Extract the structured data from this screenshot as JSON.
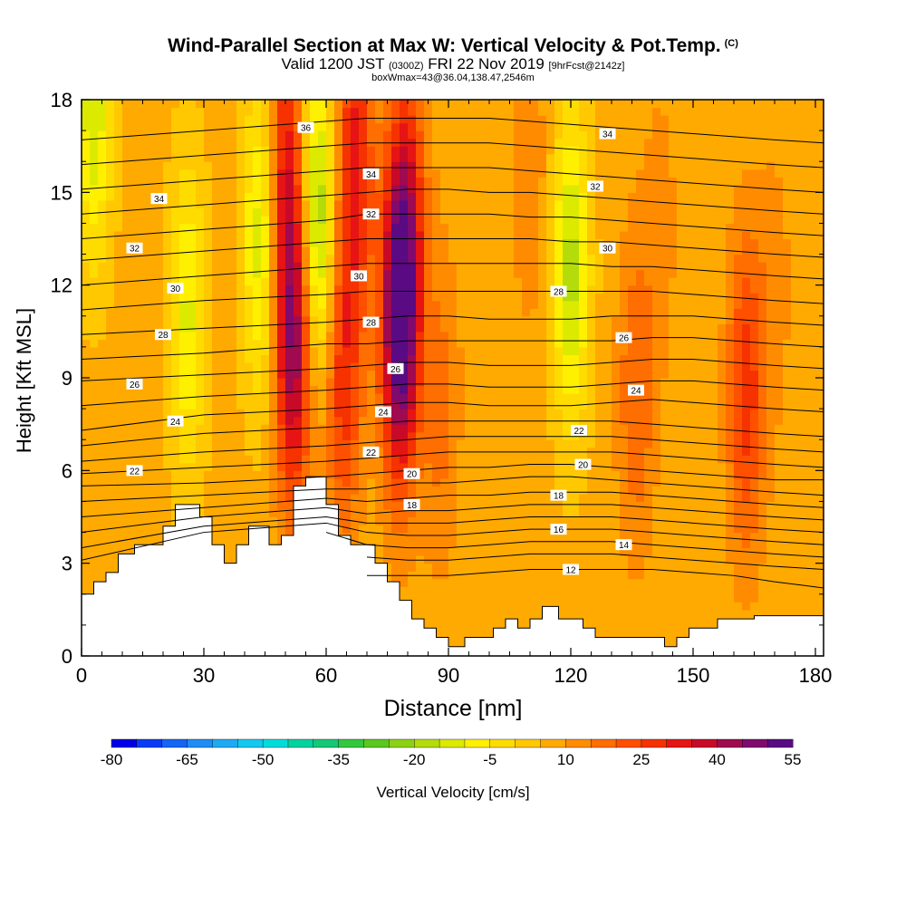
{
  "title": {
    "main": "Wind-Parallel Section at Max W: Vertical Velocity & Pot.Temp.",
    "copyright": "(C)",
    "valid_prefix": "Valid 1200 JST",
    "valid_zulu": "(0300Z)",
    "valid_date": "FRI 22 Nov 2019",
    "forecast": "[9hrFcst@2142z]",
    "box": "boxWmax=43@36.04,138.47,2546m"
  },
  "chart_data": {
    "type": "heatmap",
    "xlabel": "Distance [nm]",
    "ylabel": "Height [Kft MSL]",
    "xlim": [
      0,
      182
    ],
    "ylim": [
      0,
      18
    ],
    "x_ticks": [
      0,
      30,
      60,
      90,
      120,
      150,
      180
    ],
    "y_ticks": [
      0,
      3,
      6,
      9,
      12,
      15,
      18
    ],
    "colorbar": {
      "label": "Vertical Velocity [cm/s]",
      "ticks": [
        -80,
        -65,
        -50,
        -35,
        -20,
        -5,
        10,
        25,
        40,
        55
      ],
      "levels": [
        -80,
        -75,
        -70,
        -65,
        -60,
        -55,
        -50,
        -45,
        -40,
        -35,
        -30,
        -25,
        -20,
        -15,
        -10,
        -5,
        0,
        5,
        10,
        15,
        20,
        25,
        30,
        35,
        40,
        45,
        50,
        55
      ],
      "colors": [
        "#0000e6",
        "#0a3cf5",
        "#1464f5",
        "#1e8cf5",
        "#1eaaf5",
        "#14c8f0",
        "#00dcdc",
        "#00d2a0",
        "#14c878",
        "#32c83c",
        "#5ac81e",
        "#8cd214",
        "#b4dc0a",
        "#dcea00",
        "#fff000",
        "#ffdc00",
        "#ffc800",
        "#ffaa00",
        "#ff8c00",
        "#ff6e00",
        "#ff5000",
        "#f53200",
        "#e61414",
        "#c80a28",
        "#a00a50",
        "#800a6e",
        "#5a0a82"
      ]
    },
    "w_features": [
      {
        "x": 3,
        "z": 17.7,
        "w": -14
      },
      {
        "x": 26,
        "z": 11,
        "w": -11
      },
      {
        "x": 44,
        "z": 13.5,
        "w": -14
      },
      {
        "x": 58,
        "z": 14.0,
        "w": -22
      },
      {
        "x": 52,
        "z": 10.0,
        "w": 44
      },
      {
        "x": 50,
        "z": 16.0,
        "w": 30
      },
      {
        "x": 67,
        "z": 16.0,
        "w": 32
      },
      {
        "x": 64,
        "z": 9.0,
        "w": 28
      },
      {
        "x": 78,
        "z": 10.8,
        "w": 55
      },
      {
        "x": 80,
        "z": 14.5,
        "w": 26
      },
      {
        "x": 88,
        "z": 8.0,
        "w": 17
      },
      {
        "x": 98,
        "z": 14.0,
        "w": 10
      },
      {
        "x": 110,
        "z": 15.5,
        "w": 14
      },
      {
        "x": 120,
        "z": 12.5,
        "w": -17
      },
      {
        "x": 136,
        "z": 8.5,
        "w": 20
      },
      {
        "x": 142,
        "z": 14.0,
        "w": 12
      },
      {
        "x": 163,
        "z": 8.5,
        "w": 28
      },
      {
        "x": 170,
        "z": 12.0,
        "w": 12
      }
    ],
    "terrain": {
      "x": [
        0,
        3,
        3,
        6,
        6,
        9,
        9,
        13,
        13,
        20,
        20,
        23,
        23,
        29,
        29,
        32,
        32,
        35,
        35,
        38,
        38,
        41,
        41,
        43,
        43,
        46,
        46,
        49,
        49,
        52,
        52,
        55,
        55,
        60,
        60,
        63,
        63,
        66,
        66,
        72,
        72,
        75,
        75,
        78,
        78,
        81,
        81,
        84,
        84,
        87,
        87,
        90,
        90,
        94,
        94,
        101,
        101,
        104,
        104,
        107,
        107,
        110,
        110,
        113,
        113,
        117,
        117,
        123,
        123,
        126,
        126,
        143,
        143,
        146,
        146,
        149,
        149,
        156,
        156,
        165,
        165,
        182
      ],
      "z": [
        2.0,
        2.0,
        2.4,
        2.4,
        2.7,
        2.7,
        3.3,
        3.3,
        3.6,
        3.6,
        4.2,
        4.2,
        4.9,
        4.9,
        4.5,
        4.5,
        3.6,
        3.6,
        3.0,
        3.0,
        3.6,
        3.6,
        4.2,
        4.2,
        4.2,
        4.2,
        3.6,
        3.6,
        3.9,
        3.9,
        5.5,
        5.5,
        5.8,
        5.8,
        4.9,
        4.9,
        3.9,
        3.9,
        3.6,
        3.6,
        3.0,
        3.0,
        2.4,
        2.4,
        1.8,
        1.8,
        1.2,
        1.2,
        0.9,
        0.9,
        0.6,
        0.6,
        0.3,
        0.3,
        0.6,
        0.6,
        0.9,
        0.9,
        1.2,
        1.2,
        0.9,
        0.9,
        1.2,
        1.2,
        1.6,
        1.6,
        1.2,
        1.2,
        0.9,
        0.9,
        0.6,
        0.6,
        0.3,
        0.3,
        0.6,
        0.6,
        0.9,
        0.9,
        1.2,
        1.2,
        1.3,
        1.3
      ]
    },
    "theta_levels": [
      12,
      13,
      14,
      15,
      16,
      17,
      18,
      19,
      20,
      21,
      22,
      23,
      24,
      25,
      26,
      27,
      28,
      29,
      30,
      31,
      32,
      33,
      34,
      35,
      36
    ],
    "theta_heights": {
      "x": [
        0,
        30,
        60,
        70,
        80,
        90,
        100,
        110,
        120,
        130,
        140,
        150,
        160,
        170,
        182
      ],
      "lines": [
        {
          "theta": 12,
          "z": [
            null,
            null,
            null,
            2.6,
            2.6,
            2.6,
            2.7,
            2.8,
            2.8,
            2.8,
            2.8,
            2.7,
            2.6,
            2.4,
            2.2
          ]
        },
        {
          "theta": 13,
          "z": [
            null,
            null,
            null,
            3.2,
            3.1,
            3.1,
            3.2,
            3.3,
            3.3,
            3.3,
            3.2,
            3.1,
            3.0,
            2.9,
            2.8
          ]
        },
        {
          "theta": 14,
          "z": [
            null,
            null,
            4.0,
            3.6,
            3.5,
            3.5,
            3.6,
            3.7,
            3.7,
            3.7,
            3.6,
            3.5,
            3.4,
            3.3,
            3.2
          ]
        },
        {
          "theta": 15,
          "z": [
            3.1,
            4.0,
            4.3,
            4.0,
            3.9,
            3.9,
            4.0,
            4.1,
            4.1,
            4.1,
            4.0,
            3.9,
            3.8,
            3.7,
            3.6
          ]
        },
        {
          "theta": 16,
          "z": [
            3.5,
            4.2,
            4.5,
            4.3,
            4.3,
            4.3,
            4.4,
            4.5,
            4.5,
            4.5,
            4.4,
            4.3,
            4.2,
            4.1,
            4.0
          ]
        },
        {
          "theta": 17,
          "z": [
            4.0,
            4.5,
            4.8,
            4.6,
            4.7,
            4.7,
            4.8,
            4.9,
            4.9,
            4.9,
            4.8,
            4.7,
            4.6,
            4.5,
            4.4
          ]
        },
        {
          "theta": 18,
          "z": [
            4.5,
            4.8,
            5.1,
            5.0,
            5.1,
            5.2,
            5.2,
            5.3,
            5.3,
            5.3,
            5.2,
            5.1,
            5.0,
            4.9,
            4.8
          ]
        },
        {
          "theta": 19,
          "z": [
            5.0,
            5.2,
            5.4,
            5.4,
            5.6,
            5.6,
            5.7,
            5.8,
            5.8,
            5.7,
            5.6,
            5.5,
            5.4,
            5.3,
            5.2
          ]
        },
        {
          "theta": 20,
          "z": [
            5.5,
            5.6,
            5.8,
            5.9,
            6.0,
            6.1,
            6.1,
            6.2,
            6.2,
            6.1,
            6.0,
            5.9,
            5.8,
            5.7,
            5.7
          ]
        },
        {
          "theta": 21,
          "z": [
            5.9,
            6.1,
            6.3,
            6.4,
            6.5,
            6.6,
            6.6,
            6.6,
            6.6,
            6.6,
            6.5,
            6.4,
            6.3,
            6.2,
            6.1
          ]
        },
        {
          "theta": 22,
          "z": [
            6.3,
            6.6,
            6.8,
            6.9,
            7.0,
            7.1,
            7.1,
            7.1,
            7.1,
            7.1,
            7.0,
            6.9,
            6.8,
            6.7,
            6.6
          ]
        },
        {
          "theta": 23,
          "z": [
            6.8,
            7.2,
            7.4,
            7.5,
            7.6,
            7.6,
            7.6,
            7.6,
            7.6,
            7.6,
            7.5,
            7.4,
            7.3,
            7.2,
            7.1
          ]
        },
        {
          "theta": 24,
          "z": [
            7.3,
            7.8,
            8.0,
            8.1,
            8.2,
            8.2,
            8.1,
            8.1,
            8.1,
            8.2,
            8.3,
            8.2,
            8.1,
            8.0,
            7.9
          ]
        },
        {
          "theta": 25,
          "z": [
            8.1,
            8.4,
            8.6,
            8.7,
            8.8,
            8.8,
            8.7,
            8.7,
            8.7,
            8.8,
            8.9,
            8.9,
            8.8,
            8.7,
            8.6
          ]
        },
        {
          "theta": 26,
          "z": [
            8.9,
            9.1,
            9.3,
            9.4,
            9.5,
            9.5,
            9.4,
            9.4,
            9.4,
            9.5,
            9.6,
            9.6,
            9.5,
            9.4,
            9.3
          ]
        },
        {
          "theta": 27,
          "z": [
            9.6,
            9.8,
            10.1,
            10.1,
            10.2,
            10.2,
            10.2,
            10.2,
            10.2,
            10.2,
            10.3,
            10.3,
            10.2,
            10.1,
            10.0
          ]
        },
        {
          "theta": 28,
          "z": [
            10.4,
            10.6,
            10.8,
            10.9,
            11.0,
            11.0,
            10.9,
            10.9,
            10.9,
            11.0,
            11.0,
            11.0,
            10.9,
            10.8,
            10.7
          ]
        },
        {
          "theta": 29,
          "z": [
            11.2,
            11.5,
            11.7,
            11.8,
            11.8,
            11.8,
            11.8,
            11.8,
            11.8,
            11.8,
            11.8,
            11.7,
            11.6,
            11.5,
            11.4
          ]
        },
        {
          "theta": 30,
          "z": [
            12.0,
            12.3,
            12.6,
            12.7,
            12.7,
            12.7,
            12.7,
            12.7,
            12.7,
            12.6,
            12.6,
            12.5,
            12.4,
            12.3,
            12.2
          ]
        },
        {
          "theta": 31,
          "z": [
            12.8,
            13.1,
            13.4,
            13.5,
            13.5,
            13.5,
            13.5,
            13.5,
            13.4,
            13.4,
            13.3,
            13.2,
            13.1,
            13.0,
            12.9
          ]
        },
        {
          "theta": 32,
          "z": [
            13.5,
            13.8,
            14.1,
            14.3,
            14.3,
            14.3,
            14.3,
            14.2,
            14.2,
            14.1,
            14.0,
            13.9,
            13.8,
            13.7,
            13.6
          ]
        },
        {
          "theta": 33,
          "z": [
            14.3,
            14.6,
            14.9,
            15.0,
            15.1,
            15.1,
            15.0,
            15.0,
            14.9,
            14.8,
            14.7,
            14.6,
            14.5,
            14.4,
            14.3
          ]
        },
        {
          "theta": 34,
          "z": [
            15.1,
            15.4,
            15.7,
            15.8,
            15.8,
            15.8,
            15.8,
            15.7,
            15.6,
            15.5,
            15.4,
            15.3,
            15.2,
            15.1,
            15.0
          ]
        },
        {
          "theta": 35,
          "z": [
            15.9,
            16.2,
            16.5,
            16.6,
            16.6,
            16.6,
            16.6,
            16.5,
            16.4,
            16.3,
            16.2,
            16.1,
            16.0,
            15.9,
            15.8
          ]
        },
        {
          "theta": 36,
          "z": [
            16.7,
            17.0,
            17.3,
            17.4,
            17.4,
            17.4,
            17.4,
            17.3,
            17.2,
            17.1,
            17.0,
            16.9,
            16.8,
            16.7,
            16.6
          ]
        }
      ]
    },
    "contour_labels": [
      {
        "text": "36",
        "x": 55,
        "z": 17.1
      },
      {
        "text": "34",
        "x": 19,
        "z": 14.8
      },
      {
        "text": "34",
        "x": 71,
        "z": 15.6
      },
      {
        "text": "34",
        "x": 129,
        "z": 16.9
      },
      {
        "text": "32",
        "x": 13,
        "z": 13.2
      },
      {
        "text": "32",
        "x": 71,
        "z": 14.3
      },
      {
        "text": "32",
        "x": 126,
        "z": 15.2
      },
      {
        "text": "30",
        "x": 23,
        "z": 11.9
      },
      {
        "text": "30",
        "x": 68,
        "z": 12.3
      },
      {
        "text": "30",
        "x": 129,
        "z": 13.2
      },
      {
        "text": "28",
        "x": 20,
        "z": 10.4
      },
      {
        "text": "28",
        "x": 71,
        "z": 10.8
      },
      {
        "text": "28",
        "x": 117,
        "z": 11.8
      },
      {
        "text": "26",
        "x": 13,
        "z": 8.8
      },
      {
        "text": "26",
        "x": 77,
        "z": 9.3
      },
      {
        "text": "26",
        "x": 133,
        "z": 10.3
      },
      {
        "text": "24",
        "x": 23,
        "z": 7.6
      },
      {
        "text": "24",
        "x": 74,
        "z": 7.9
      },
      {
        "text": "24",
        "x": 136,
        "z": 8.6
      },
      {
        "text": "22",
        "x": 13,
        "z": 6.0
      },
      {
        "text": "22",
        "x": 71,
        "z": 6.6
      },
      {
        "text": "22",
        "x": 122,
        "z": 7.3
      },
      {
        "text": "20",
        "x": 81,
        "z": 5.9
      },
      {
        "text": "20",
        "x": 123,
        "z": 6.2
      },
      {
        "text": "18",
        "x": 81,
        "z": 4.9
      },
      {
        "text": "18",
        "x": 117,
        "z": 5.2
      },
      {
        "text": "16",
        "x": 117,
        "z": 4.1
      },
      {
        "text": "14",
        "x": 133,
        "z": 3.6
      },
      {
        "text": "12",
        "x": 120,
        "z": 2.8
      }
    ]
  }
}
